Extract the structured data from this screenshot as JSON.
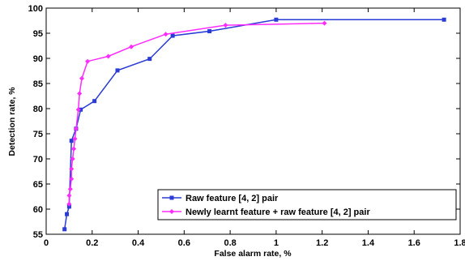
{
  "chart_data": {
    "type": "line",
    "title": "",
    "xlabel": "False alarm rate, %",
    "ylabel": "Detection rate, %",
    "xlim": [
      0,
      1.8
    ],
    "ylim": [
      55,
      100
    ],
    "xticks": [
      0,
      0.2,
      0.4,
      0.6,
      0.8,
      1,
      1.2,
      1.4,
      1.6,
      1.8
    ],
    "xtick_labels": [
      "0",
      "0.2",
      "0.4",
      "0.6",
      "0.8",
      "1",
      "1.2",
      "1.4",
      "1.6",
      "1.8"
    ],
    "yticks": [
      55,
      60,
      65,
      70,
      75,
      80,
      85,
      90,
      95,
      100
    ],
    "ytick_labels": [
      "55",
      "60",
      "65",
      "70",
      "75",
      "80",
      "85",
      "90",
      "95",
      "100"
    ],
    "grid": false,
    "legend_position": "lower-right",
    "series": [
      {
        "name": "Raw feature [4, 2] pair",
        "color": "#2a3bd6",
        "marker": "square",
        "x": [
          0.08,
          0.09,
          0.1,
          0.11,
          0.13,
          0.15,
          0.21,
          0.31,
          0.45,
          0.55,
          0.71,
          1.0,
          1.73
        ],
        "y": [
          56.0,
          59.0,
          60.5,
          73.6,
          76.0,
          79.8,
          81.5,
          87.6,
          89.9,
          94.5,
          95.4,
          97.7,
          97.7
        ]
      },
      {
        "name": "Newly learnt feature + raw feature [4, 2] pair",
        "color": "#ff2bff",
        "marker": "diamond",
        "x": [
          0.1,
          0.1,
          0.105,
          0.11,
          0.11,
          0.115,
          0.12,
          0.125,
          0.13,
          0.14,
          0.145,
          0.155,
          0.18,
          0.27,
          0.37,
          0.52,
          0.78,
          1.21
        ],
        "y": [
          61.0,
          62.7,
          64.0,
          66.0,
          68.0,
          70.0,
          72.0,
          74.0,
          76.0,
          79.8,
          83.0,
          86.0,
          89.4,
          90.4,
          92.3,
          94.8,
          96.6,
          97.0
        ]
      }
    ]
  }
}
